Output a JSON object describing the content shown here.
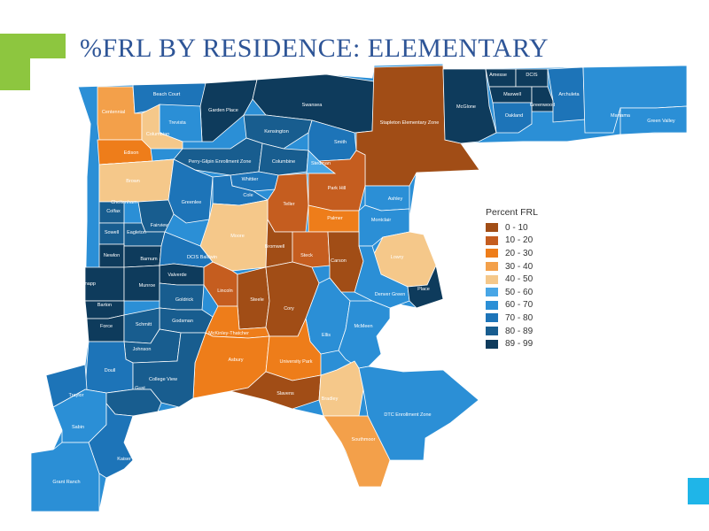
{
  "title": "%FRL BY RESIDENCE: ELEMENTARY",
  "legend": {
    "title": "Percent FRL",
    "classes": [
      {
        "label": "0 - 10",
        "color": "#a14d16"
      },
      {
        "label": "10 - 20",
        "color": "#c55d1f"
      },
      {
        "label": "20 - 30",
        "color": "#ee7d1a"
      },
      {
        "label": "30 - 40",
        "color": "#f3a04a"
      },
      {
        "label": "40 - 50",
        "color": "#f5c88a"
      },
      {
        "label": "50 - 60",
        "color": "#48a6e6"
      },
      {
        "label": "60 - 70",
        "color": "#2b8fd6"
      },
      {
        "label": "70 - 80",
        "color": "#1d74b8"
      },
      {
        "label": "80 - 89",
        "color": "#185d8f"
      },
      {
        "label": "89 - 99",
        "color": "#0e3b5c"
      }
    ]
  },
  "districts": [
    {
      "name": "Centennial",
      "class": 3
    },
    {
      "name": "Beach Court",
      "class": 7
    },
    {
      "name": "Garden Place",
      "class": 9
    },
    {
      "name": "Swansea",
      "class": 9
    },
    {
      "name": "Stapleton Elementary Zone",
      "class": 0
    },
    {
      "name": "McGlone",
      "class": 9
    },
    {
      "name": "Amesse",
      "class": 9
    },
    {
      "name": "DCIS",
      "class": 9
    },
    {
      "name": "Maxwell",
      "class": 9
    },
    {
      "name": "Greenwood",
      "class": 9
    },
    {
      "name": "Oakland",
      "class": 7
    },
    {
      "name": "Archuleta",
      "class": 7
    },
    {
      "name": "Marrama",
      "class": 6
    },
    {
      "name": "Green Valley",
      "class": 6
    },
    {
      "name": "Trevista",
      "class": 6
    },
    {
      "name": "Columbian",
      "class": 4
    },
    {
      "name": "Kensington",
      "class": 8
    },
    {
      "name": "Smith",
      "class": 7
    },
    {
      "name": "Edison",
      "class": 2
    },
    {
      "name": "Cheltenham",
      "class": 8
    },
    {
      "name": "Perry-Gilpin Enrollment Zone",
      "class": 8
    },
    {
      "name": "Columbine",
      "class": 8
    },
    {
      "name": "Stedman",
      "class": 5
    },
    {
      "name": "Brown",
      "class": 4
    },
    {
      "name": "Whittier",
      "class": 7
    },
    {
      "name": "Park Hill",
      "class": 1
    },
    {
      "name": "Ashley",
      "class": 6
    },
    {
      "name": "Greenlee",
      "class": 7
    },
    {
      "name": "Cole",
      "class": 7
    },
    {
      "name": "Teller",
      "class": 1
    },
    {
      "name": "Palmer",
      "class": 2
    },
    {
      "name": "Montclair",
      "class": 6
    },
    {
      "name": "Colfax",
      "class": 8
    },
    {
      "name": "Fairview",
      "class": 8
    },
    {
      "name": "Moore",
      "class": 4
    },
    {
      "name": "Bromwell",
      "class": 0
    },
    {
      "name": "Lowry",
      "class": 4
    },
    {
      "name": "Sowell",
      "class": 8
    },
    {
      "name": "Eagleton",
      "class": 8
    },
    {
      "name": "Steck",
      "class": 1
    },
    {
      "name": "Carson",
      "class": 0
    },
    {
      "name": "Newlon",
      "class": 9
    },
    {
      "name": "Barnum",
      "class": 9
    },
    {
      "name": "DCIS Baldwin",
      "class": 7
    },
    {
      "name": "Knapp",
      "class": 9
    },
    {
      "name": "Valverde",
      "class": 9
    },
    {
      "name": "Munroe",
      "class": 9
    },
    {
      "name": "Lincoln",
      "class": 1
    },
    {
      "name": "Steele",
      "class": 0
    },
    {
      "name": "Denver Green",
      "class": 6
    },
    {
      "name": "Place",
      "class": 9
    },
    {
      "name": "Goldrick",
      "class": 8
    },
    {
      "name": "Barton",
      "class": 9
    },
    {
      "name": "Godsman",
      "class": 8
    },
    {
      "name": "Cory",
      "class": 0
    },
    {
      "name": "Force",
      "class": 9
    },
    {
      "name": "Schmitt",
      "class": 8
    },
    {
      "name": "McKinley-Thatcher",
      "class": 2
    },
    {
      "name": "Ellis",
      "class": 6
    },
    {
      "name": "McMeen",
      "class": 6
    },
    {
      "name": "Johnson",
      "class": 8
    },
    {
      "name": "Asbury",
      "class": 2
    },
    {
      "name": "University Park",
      "class": 2
    },
    {
      "name": "Doull",
      "class": 7
    },
    {
      "name": "College View",
      "class": 8
    },
    {
      "name": "Sabin",
      "class": 6
    },
    {
      "name": "Gust",
      "class": 8
    },
    {
      "name": "Slavens",
      "class": 0
    },
    {
      "name": "Bradley",
      "class": 4
    },
    {
      "name": "DTC Enrollment Zone",
      "class": 6
    },
    {
      "name": "Traylor",
      "class": 7
    },
    {
      "name": "Southmoor",
      "class": 3
    },
    {
      "name": "Kaiser",
      "class": 7
    },
    {
      "name": "Grant Ranch",
      "class": 6
    }
  ]
}
